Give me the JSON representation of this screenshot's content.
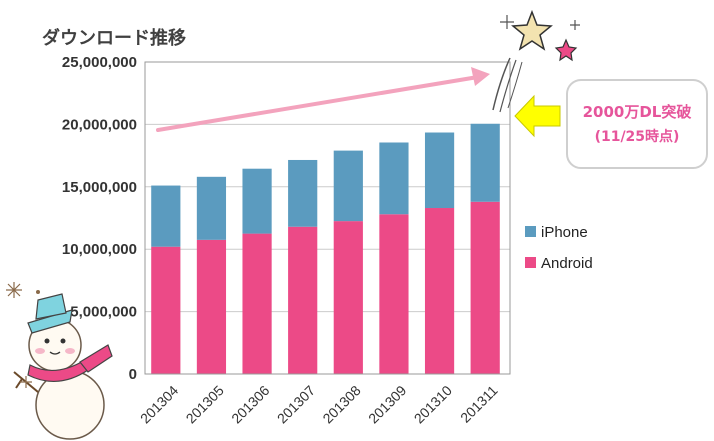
{
  "colors": {
    "iphone": "#5b9bbf",
    "android": "#ec4a87",
    "trend_arrow": "#f3a3bd",
    "callout_arrow": "#ffff00",
    "callout_text": "#e6559b",
    "plot_border": "#999999",
    "gridline": "#cccccc"
  },
  "chart_data": {
    "type": "bar",
    "stacked": true,
    "title": "ダウンロード推移",
    "categories": [
      "201304",
      "201305",
      "201306",
      "201307",
      "201308",
      "201309",
      "201310",
      "201311"
    ],
    "series": [
      {
        "name": "Android",
        "values": [
          10200000,
          10750000,
          11250000,
          11800000,
          12250000,
          12800000,
          13300000,
          13800000
        ]
      },
      {
        "name": "iPhone",
        "values": [
          4900000,
          5050000,
          5200000,
          5350000,
          5650000,
          5750000,
          6050000,
          6250000
        ]
      }
    ],
    "ylim": [
      0,
      25000000
    ],
    "yticks": [
      "0",
      "5,000,000",
      "10,000,000",
      "15,000,000",
      "20,000,000",
      "25,000,000"
    ],
    "legend": {
      "placement": "right",
      "entries": [
        "iPhone",
        "Android"
      ]
    },
    "grid": true
  },
  "callout": {
    "line1": "2000万DL突破",
    "line2": "(11/25時点)"
  },
  "decorations": {
    "stars": "star-icons",
    "snowman": "snowman-illustration"
  }
}
